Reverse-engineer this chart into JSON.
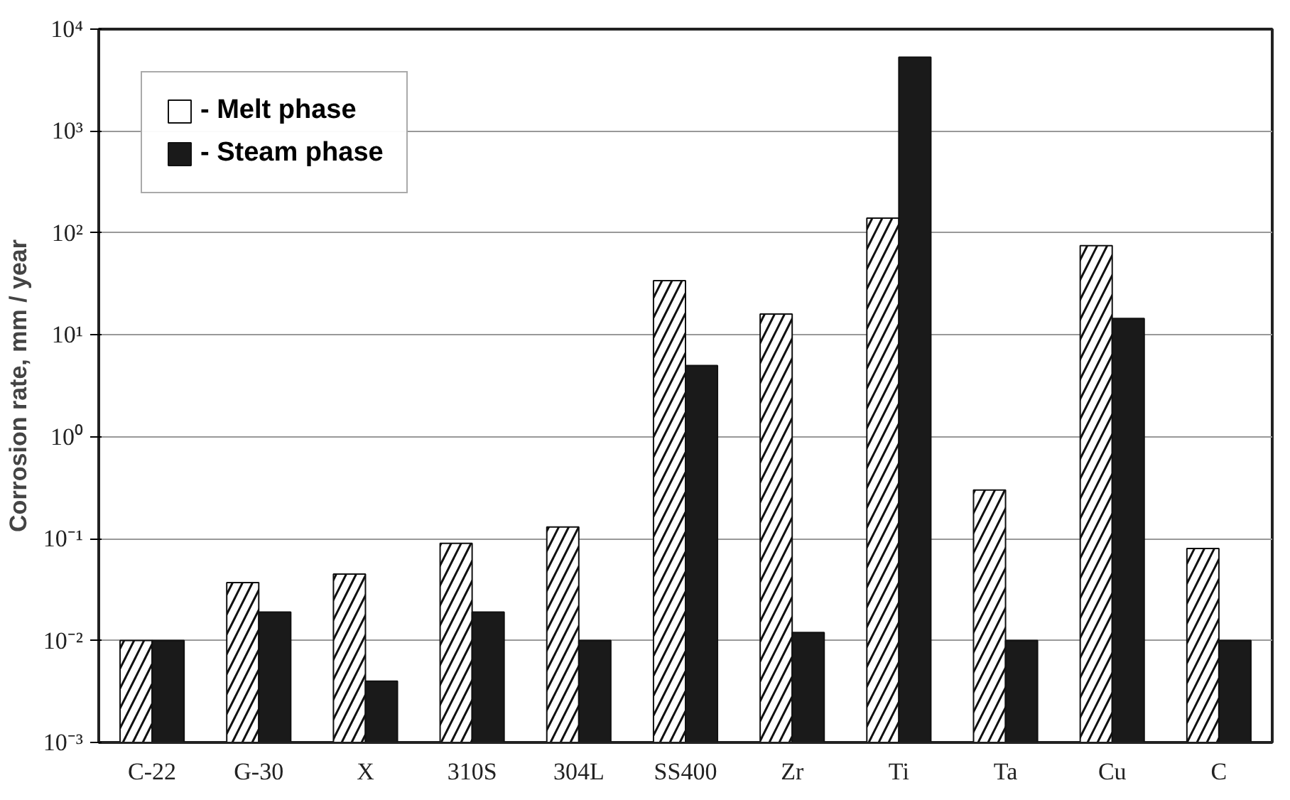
{
  "chart_data": {
    "type": "bar",
    "ylabel": "Corrosion rate, mm / year",
    "categories": [
      "C-22",
      "G-30",
      "X",
      "310S",
      "304L",
      "SS400",
      "Zr",
      "Ti",
      "Ta",
      "Cu",
      "C"
    ],
    "series": [
      {
        "name": "- Melt phase",
        "color": "#ffffff",
        "values": [
          0.01,
          0.037,
          0.045,
          0.09,
          0.13,
          34,
          16,
          140,
          0.3,
          75,
          0.08
        ]
      },
      {
        "name": "- Steam phase",
        "color": "#1a1a1a",
        "values": [
          0.01,
          0.019,
          0.004,
          0.019,
          0.01,
          5,
          0.012,
          5300,
          0.01,
          14.5,
          0.01
        ]
      }
    ],
    "log": "y",
    "ylim": [
      0.001,
      10000
    ],
    "yticks": [
      {
        "value": 0.001,
        "label": "10⁻³"
      },
      {
        "value": 0.01,
        "label": "10⁻²"
      },
      {
        "value": 0.1,
        "label": "10⁻¹"
      },
      {
        "value": 1,
        "label": "10⁰"
      },
      {
        "value": 10,
        "label": "10¹"
      },
      {
        "value": 100,
        "label": "10²"
      },
      {
        "value": 1000,
        "label": "10³"
      },
      {
        "value": 10000,
        "label": "10⁴"
      }
    ],
    "grid": "y",
    "legend": "top left"
  }
}
